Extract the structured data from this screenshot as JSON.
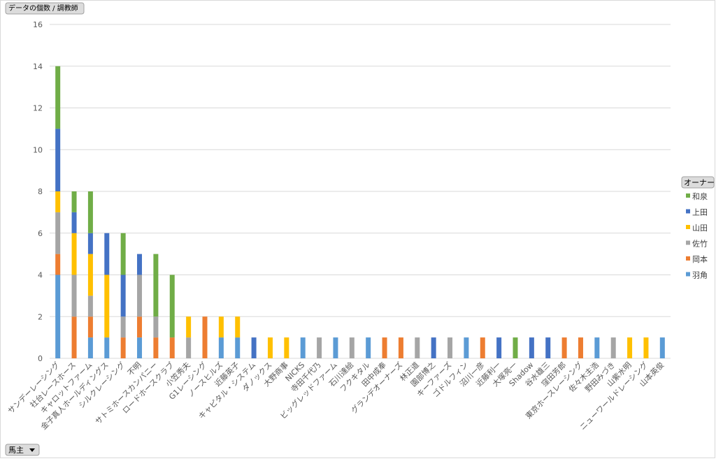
{
  "chart_data": {
    "type": "stacked_bar",
    "value_field": "データの個数 / 調教師",
    "legend_title": "オーナー",
    "axis_field": "馬主",
    "categories": [
      "サンデーレーシング",
      "社台レースホース",
      "キャロットファーム",
      "金子真人ホールディングス",
      "シルクレーシング",
      "不明",
      "サトミホースカンパニー",
      "ロードホースクラブ",
      "小笠秀夫",
      "G1レーシング",
      "ノースヒルズ",
      "近藤英子",
      "キャピタル・システム",
      "ダノックス",
      "大野商事",
      "NICKS",
      "寺田千代乃",
      "ビッグレッドファーム",
      "石川達絵",
      "フクキタル",
      "田中成奉",
      "グランデオーナーズ",
      "林正道",
      "園部博之",
      "キーファーズ",
      "ゴドルフィン",
      "沼川一彦",
      "近藤利一",
      "大塚亮一",
      "Shadow",
      "谷水雄三",
      "窪田芳郎",
      "東京ホースレーシング",
      "佐々木主浩",
      "野田みづき",
      "山紫水明",
      "ニューワールドレーシング",
      "山本英俊"
    ],
    "series": [
      {
        "name": "羽角",
        "color": "#5b9bd5",
        "values": [
          4,
          null,
          1,
          1,
          null,
          1,
          null,
          null,
          null,
          null,
          1,
          1,
          null,
          null,
          null,
          1,
          null,
          1,
          null,
          1,
          null,
          null,
          null,
          null,
          null,
          1,
          null,
          null,
          null,
          null,
          null,
          null,
          null,
          1,
          null,
          null,
          null,
          1
        ]
      },
      {
        "name": "岡本",
        "color": "#ed7d31",
        "values": [
          1,
          2,
          1,
          null,
          1,
          1,
          1,
          1,
          null,
          2,
          null,
          null,
          null,
          null,
          null,
          null,
          null,
          null,
          null,
          null,
          1,
          1,
          null,
          null,
          null,
          null,
          1,
          null,
          null,
          null,
          null,
          1,
          1,
          null,
          null,
          null,
          null,
          null
        ]
      },
      {
        "name": "佐竹",
        "color": "#a5a5a5",
        "values": [
          2,
          2,
          1,
          null,
          1,
          2,
          1,
          null,
          1,
          null,
          null,
          null,
          null,
          null,
          null,
          null,
          1,
          null,
          1,
          null,
          null,
          null,
          1,
          null,
          1,
          null,
          null,
          null,
          null,
          null,
          null,
          null,
          null,
          null,
          1,
          null,
          null,
          null
        ]
      },
      {
        "name": "山田",
        "color": "#ffc000",
        "values": [
          1,
          2,
          2,
          3,
          null,
          null,
          null,
          null,
          1,
          null,
          1,
          1,
          null,
          1,
          1,
          null,
          null,
          null,
          null,
          null,
          null,
          null,
          null,
          null,
          null,
          null,
          null,
          null,
          null,
          null,
          null,
          null,
          null,
          null,
          null,
          1,
          1,
          null
        ]
      },
      {
        "name": "上田",
        "color": "#4472c4",
        "values": [
          3,
          1,
          1,
          2,
          2,
          1,
          null,
          null,
          null,
          null,
          null,
          null,
          1,
          null,
          null,
          null,
          null,
          null,
          null,
          null,
          null,
          null,
          null,
          1,
          null,
          null,
          null,
          1,
          null,
          1,
          1,
          null,
          null,
          null,
          null,
          null,
          null,
          null
        ]
      },
      {
        "name": "和泉",
        "color": "#70ad47",
        "values": [
          3,
          1,
          2,
          null,
          2,
          null,
          3,
          3,
          null,
          null,
          null,
          null,
          null,
          null,
          null,
          null,
          null,
          null,
          null,
          null,
          null,
          null,
          null,
          null,
          null,
          null,
          null,
          null,
          1,
          null,
          null,
          null,
          null,
          null,
          null,
          null,
          null,
          null
        ]
      }
    ],
    "ylim": [
      0,
      16
    ],
    "yticks": [
      0,
      2,
      4,
      6,
      8,
      10,
      12,
      14,
      16
    ],
    "grid": true
  }
}
